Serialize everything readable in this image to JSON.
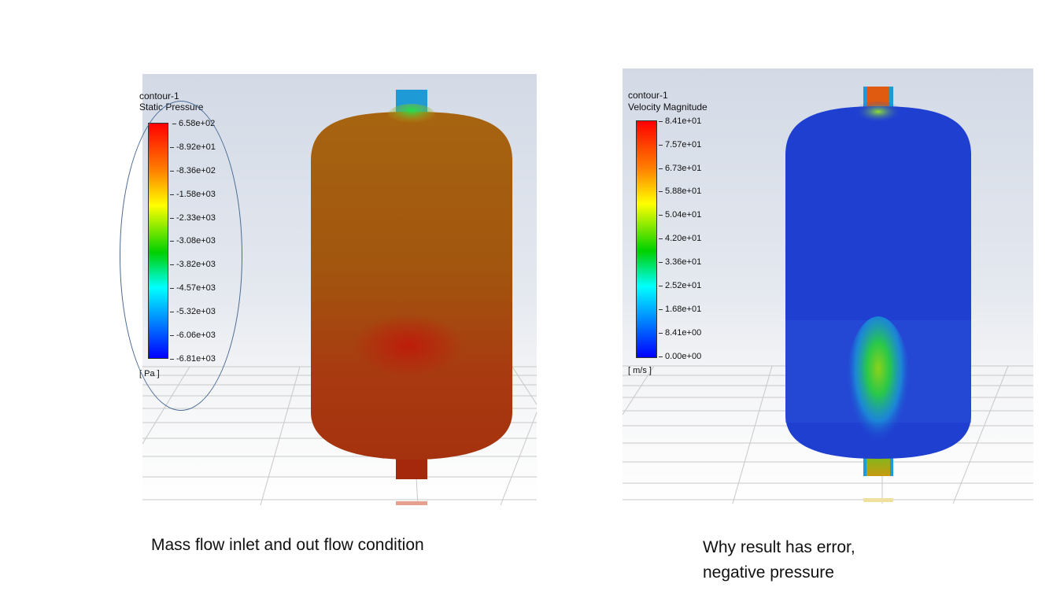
{
  "left_panel": {
    "title": "contour-1",
    "variable": "Static Pressure",
    "ticks": [
      "6.58e+02",
      "-8.92e+01",
      "-8.36e+02",
      "-1.58e+03",
      "-2.33e+03",
      "-3.08e+03",
      "-3.82e+03",
      "-4.57e+03",
      "-5.32e+03",
      "-6.06e+03",
      "-6.81e+03"
    ],
    "unit": "[ Pa ]"
  },
  "right_panel": {
    "title": "contour-1",
    "variable": "Velocity Magnitude",
    "ticks": [
      "8.41e+01",
      "7.57e+01",
      "6.73e+01",
      "5.88e+01",
      "5.04e+01",
      "4.20e+01",
      "3.36e+01",
      "2.52e+01",
      "1.68e+01",
      "8.41e+00",
      "0.00e+00"
    ],
    "unit": "[ m/s ]"
  },
  "captions": {
    "left": "Mass flow inlet and out flow condition",
    "right_line1": "Why result has error,",
    "right_line2": "negative pressure"
  },
  "colors": {
    "colormap_top": "#ff0000",
    "colormap_bottom": "#0000ff",
    "pressure_body": "#a3511a",
    "velocity_body": "#1f3fd1",
    "annotation": "#4a6a93"
  }
}
